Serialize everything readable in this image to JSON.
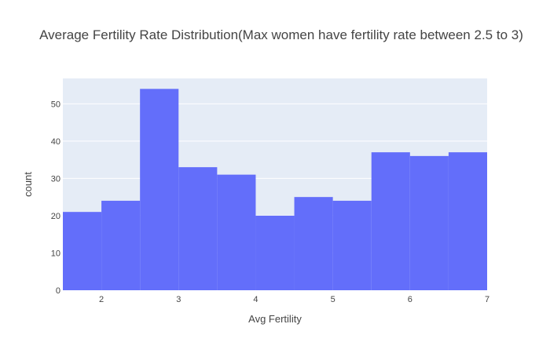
{
  "chart_data": {
    "type": "bar",
    "title": "Average Fertility Rate Distribution(Max women have fertility rate between 2.5 to 3)",
    "xlabel": "Avg Fertility",
    "ylabel": "count",
    "bins": [
      {
        "start": 1.5,
        "end": 2.0,
        "value": 21
      },
      {
        "start": 2.0,
        "end": 2.5,
        "value": 24
      },
      {
        "start": 2.5,
        "end": 3.0,
        "value": 54
      },
      {
        "start": 3.0,
        "end": 3.5,
        "value": 33
      },
      {
        "start": 3.5,
        "end": 4.0,
        "value": 31
      },
      {
        "start": 4.0,
        "end": 4.5,
        "value": 20
      },
      {
        "start": 4.5,
        "end": 5.0,
        "value": 25
      },
      {
        "start": 5.0,
        "end": 5.5,
        "value": 24
      },
      {
        "start": 5.5,
        "end": 6.0,
        "value": 37
      },
      {
        "start": 6.0,
        "end": 6.5,
        "value": 36
      },
      {
        "start": 6.5,
        "end": 7.0,
        "value": 37
      }
    ],
    "xlim": [
      1.5,
      7
    ],
    "ylim": [
      0,
      56.8
    ],
    "xticks": [
      2,
      3,
      4,
      5,
      6,
      7
    ],
    "yticks": [
      0,
      10,
      20,
      30,
      40,
      50
    ],
    "grid": true,
    "colors": {
      "bar": "#636efa",
      "plot_bg": "#e5ecf6",
      "grid": "#ffffff",
      "text": "#444444"
    }
  }
}
